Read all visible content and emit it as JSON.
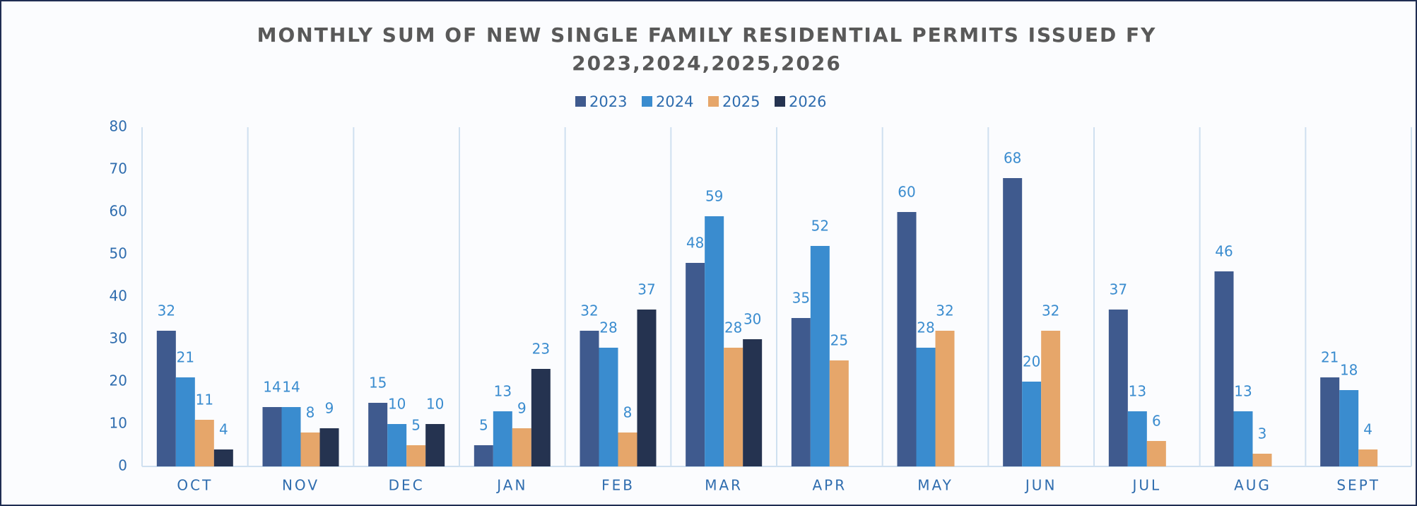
{
  "chart_data": {
    "type": "bar",
    "title": "MONTHLY SUM OF NEW SINGLE FAMILY RESIDENTIAL PERMITS ISSUED FY 2023,2024,2025,2026",
    "categories": [
      "OCT",
      "NOV",
      "DEC",
      "JAN",
      "FEB",
      "MAR",
      "APR",
      "MAY",
      "JUN",
      "JUL",
      "AUG",
      "SEPT"
    ],
    "series": [
      {
        "name": "2023",
        "color": "#3f5a8e",
        "values": [
          32,
          14,
          15,
          5,
          32,
          48,
          35,
          60,
          68,
          37,
          46,
          21
        ]
      },
      {
        "name": "2024",
        "color": "#3a8ccf",
        "values": [
          21,
          14,
          10,
          13,
          28,
          59,
          52,
          28,
          20,
          13,
          13,
          18
        ]
      },
      {
        "name": "2025",
        "color": "#e6a66a",
        "values": [
          11,
          8,
          5,
          9,
          8,
          28,
          25,
          32,
          32,
          6,
          3,
          4
        ]
      },
      {
        "name": "2026",
        "color": "#253350",
        "values": [
          4,
          9,
          10,
          23,
          37,
          30,
          null,
          null,
          null,
          null,
          null,
          null
        ]
      }
    ],
    "ylim": [
      0,
      80
    ],
    "yticks": [
      0,
      10,
      20,
      30,
      40,
      50,
      60,
      70,
      80
    ],
    "legend": "top"
  }
}
